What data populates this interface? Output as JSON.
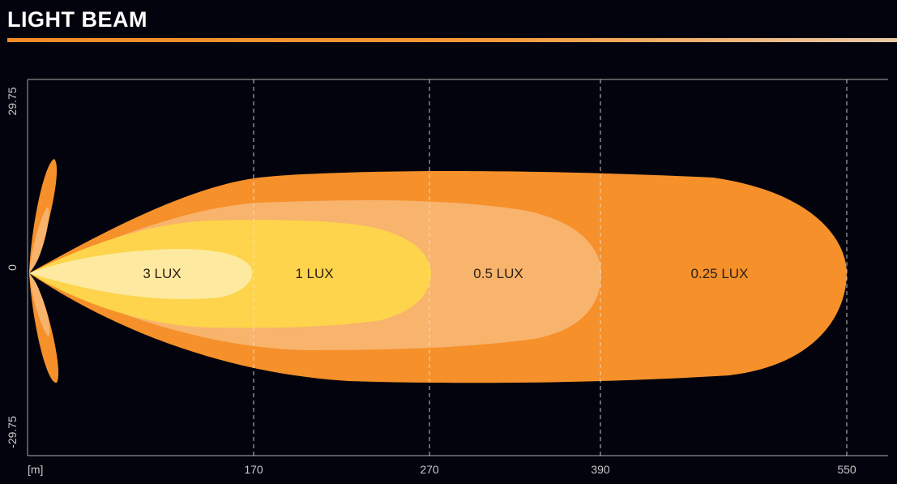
{
  "header": {
    "title": "LIGHT BEAM"
  },
  "chart_data": {
    "type": "area",
    "x_unit_label": "[m]",
    "x_ticks": [
      170,
      270,
      390,
      550
    ],
    "x_tick_labels": [
      "170",
      "270",
      "390",
      "550"
    ],
    "y_ticks": [
      29.75,
      0,
      -29.75
    ],
    "y_tick_labels": [
      "29.75",
      "0",
      "-29.75"
    ],
    "xlim": [
      0,
      575
    ],
    "ylim": [
      -29.75,
      29.75
    ],
    "grid": "vertical dashed at x ticks",
    "zones": [
      {
        "label": "0.25 LUX",
        "reach": 550,
        "half_width": 16,
        "color": "#f5902a"
      },
      {
        "label": "0.5 LUX",
        "reach": 390,
        "half_width": 11,
        "color": "#f8b36c"
      },
      {
        "label": "1 LUX",
        "reach": 270,
        "half_width": 8.5,
        "color": "#fdd44b"
      },
      {
        "label": "3 LUX",
        "reach": 170,
        "half_width": 3.5,
        "color": "#fdeaa0"
      }
    ]
  }
}
